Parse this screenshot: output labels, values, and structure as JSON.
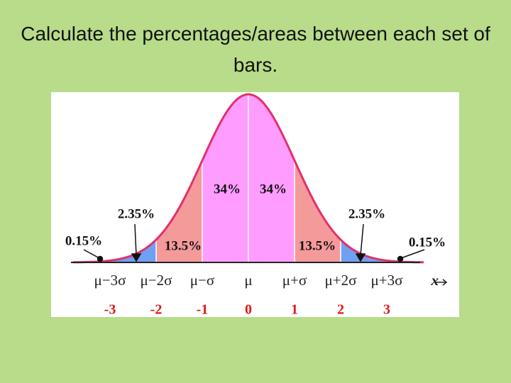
{
  "title": "Calculate the percentages/areas between each set of  bars.",
  "percent_labels": [
    "0.15%",
    "2.35%",
    "13.5%",
    "34%",
    "34%",
    "13.5%",
    "2.35%",
    "0.15%"
  ],
  "sigma_labels": [
    "μ−3σ",
    "μ−2σ",
    "μ−σ",
    "μ",
    "μ+σ",
    "μ+2σ",
    "μ+3σ"
  ],
  "x_label": "x",
  "z_labels": [
    "-3",
    "-2",
    "-1",
    "0",
    "1",
    "2",
    "3"
  ]
}
